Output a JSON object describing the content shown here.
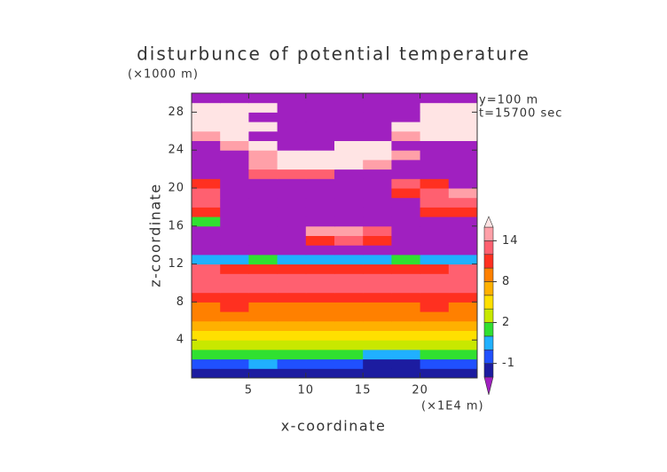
{
  "chart_data": {
    "type": "heatmap",
    "title": "disturbunce of potential temperature",
    "y_unit": "(×1000 m)",
    "x_unit": "(×1E4 m)",
    "annotations": [
      "y=100 m",
      "t=15700 sec"
    ],
    "x_label": "x-coordinate",
    "y_label": "z-coordinate",
    "xlim": [
      0,
      25
    ],
    "ylim": [
      0,
      30
    ],
    "xticks": [
      5,
      10,
      15,
      20
    ],
    "yticks": [
      4,
      8,
      12,
      16,
      20,
      24,
      28
    ],
    "x": [
      1.25,
      3.75,
      6.25,
      8.75,
      11.25,
      13.75,
      16.25,
      18.75,
      21.25,
      23.75
    ],
    "y": [
      0.5,
      1.5,
      2.5,
      3.5,
      4.5,
      5.5,
      6.5,
      7.5,
      8.5,
      9.5,
      10.5,
      11.5,
      12.5,
      13.5,
      14.5,
      15.5,
      16.5,
      17.5,
      18.5,
      19.5,
      20.5,
      21.5,
      22.5,
      23.5,
      24.5,
      25.5,
      26.5,
      27.5,
      28.5,
      29.5
    ],
    "z": [
      [
        -1.5,
        -1.5,
        -1.5,
        -1.5,
        -1.5,
        -1.5,
        -1.5,
        -1.5,
        -1.5,
        -1.5
      ],
      [
        -0.5,
        -0.5,
        0.5,
        -0.5,
        -0.5,
        -0.5,
        -1.5,
        -1.5,
        -0.5,
        -0.5
      ],
      [
        1.5,
        1.5,
        1.5,
        1.5,
        1.5,
        1.5,
        0.5,
        0.5,
        1.5,
        1.5
      ],
      [
        3,
        3,
        3,
        3,
        3,
        3,
        3,
        2.5,
        3,
        3
      ],
      [
        5,
        5,
        5,
        4.5,
        5,
        5,
        5,
        5,
        5,
        5
      ],
      [
        7,
        7,
        7,
        7,
        7,
        7,
        7,
        7,
        6.5,
        7
      ],
      [
        8.5,
        8.5,
        8.5,
        8.5,
        8.5,
        8.5,
        8.5,
        8.5,
        8.5,
        8.5
      ],
      [
        9.5,
        10.5,
        9.5,
        9.5,
        9.5,
        9.5,
        9.5,
        9.5,
        10.5,
        9.5
      ],
      [
        11,
        11,
        10.5,
        10.5,
        10.5,
        10.5,
        10.5,
        10.5,
        11,
        11
      ],
      [
        13,
        12.5,
        12.5,
        12.5,
        12.5,
        12.5,
        12.5,
        12.5,
        13,
        13
      ],
      [
        13,
        13,
        13,
        13,
        13,
        13,
        13,
        13,
        13,
        13
      ],
      [
        12,
        11,
        11,
        11,
        11,
        11,
        11,
        11,
        11,
        12
      ],
      [
        0.5,
        0.5,
        1,
        0.5,
        0.5,
        0.5,
        0.5,
        1,
        0.5,
        0.5
      ],
      [
        -3,
        -3,
        -3,
        -3,
        -3,
        -3,
        -3,
        -3,
        -3,
        -3
      ],
      [
        -3,
        -3,
        -3,
        -3,
        11,
        13,
        11,
        -3,
        -3,
        -3
      ],
      [
        -3,
        -3,
        -3,
        -3,
        14,
        15,
        13,
        -3,
        -3,
        -3
      ],
      [
        1,
        -3,
        -3,
        -3,
        -3,
        -3,
        -3,
        -3,
        -3,
        -3
      ],
      [
        10,
        -3,
        -3,
        -3,
        -3,
        -3,
        -3,
        -3,
        11,
        10
      ],
      [
        12,
        -3,
        -3,
        -3,
        -3,
        -3,
        -3,
        -3,
        13,
        12
      ],
      [
        13,
        -3,
        -3,
        -3,
        -3,
        -3,
        -3,
        10,
        13,
        14
      ],
      [
        11,
        -3,
        -3,
        -3,
        -3,
        -3,
        -3,
        12,
        11,
        -3
      ],
      [
        -3,
        -3,
        12,
        13,
        13,
        -3,
        -3,
        -3,
        -3,
        -3
      ],
      [
        -3,
        -3,
        15,
        16.5,
        16.5,
        16.5,
        14,
        -3,
        -3,
        -3
      ],
      [
        -3,
        -3,
        15,
        16.5,
        17,
        17,
        17,
        15,
        -3,
        -3
      ],
      [
        -3,
        15,
        16.5,
        -3,
        -3,
        17,
        17,
        -3,
        -3,
        -3
      ],
      [
        15,
        16.5,
        -3,
        -3,
        -3,
        -3,
        -3,
        14,
        16.5,
        17
      ],
      [
        17,
        17,
        16.5,
        -3,
        -3,
        -3,
        -3,
        16.5,
        17,
        17
      ],
      [
        17,
        17,
        -3,
        -3,
        -3,
        -3,
        -3,
        -3,
        17,
        17
      ],
      [
        16.5,
        17,
        17,
        -3,
        -3,
        -3,
        -3,
        -3,
        17,
        16.5
      ],
      [
        -3,
        -3,
        -3,
        -3,
        -3,
        -3,
        -3,
        -3,
        -3,
        -3
      ]
    ],
    "levels": [
      -2,
      -1,
      0,
      1,
      2,
      4,
      6,
      8,
      10,
      12,
      14,
      16
    ],
    "colors": [
      "#a020c0",
      "#1c1ca0",
      "#2050ff",
      "#20b0ff",
      "#30e030",
      "#c8e800",
      "#ffe000",
      "#ffb000",
      "#ff8000",
      "#ff3020",
      "#ff6070",
      "#ffa0a8",
      "#ffe4e4"
    ],
    "colorbar_ticks": [
      -1,
      2,
      8,
      14
    ]
  }
}
